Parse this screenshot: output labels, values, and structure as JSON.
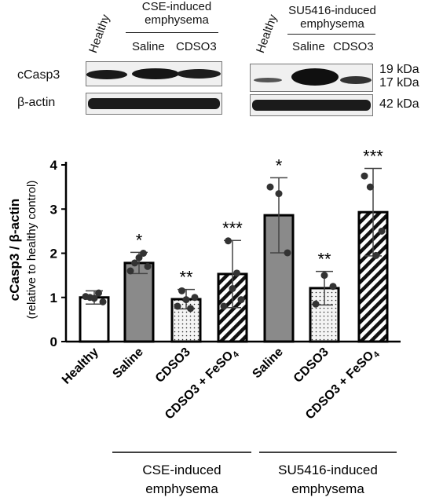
{
  "blots": {
    "left": {
      "lane_healthy": "Healthy",
      "group_title": "CSE-induced\nemphysema",
      "lane_saline": "Saline",
      "lane_cdso3": "CDSO3"
    },
    "right": {
      "lane_healthy": "Healthy",
      "group_title": "SU5416-induced\nemphysema",
      "lane_saline": "Saline",
      "lane_cdso3": "CDSO3"
    },
    "row_labels": {
      "top": "cCasp3",
      "bottom": "β-actin"
    },
    "size_labels": [
      "19 kDa",
      "17 kDa",
      "42 kDa"
    ]
  },
  "chart_data": {
    "type": "bar",
    "ylabel": "cCasp3 / β-actin",
    "ylabel_sub": "(relative to healthy control)",
    "ylim": [
      0,
      4
    ],
    "yticks": [
      0,
      1,
      2,
      3,
      4
    ],
    "categories": [
      "Healthy",
      "Saline",
      "CDSO3",
      "CDSO3 + FeSO4",
      "Saline",
      "CDSO3",
      "CDSO3 + FeSO4"
    ],
    "values": [
      1.0,
      1.78,
      0.96,
      1.53,
      2.86,
      1.21,
      2.93
    ],
    "error_upper": [
      1.15,
      2.02,
      1.18,
      2.29,
      3.71,
      1.59,
      3.92
    ],
    "error_lower": [
      0.85,
      1.54,
      0.74,
      0.77,
      2.01,
      0.83,
      1.94
    ],
    "fills": [
      "white",
      "gray",
      "dots",
      "stripes",
      "gray",
      "dots",
      "stripes"
    ],
    "significance": [
      "",
      "*",
      "**",
      "***",
      "*",
      "**",
      "***"
    ],
    "points": [
      [
        1.02,
        1.0,
        0.98,
        1.1,
        0.9
      ],
      [
        1.6,
        1.78,
        1.9,
        2.0,
        1.7
      ],
      [
        0.8,
        1.15,
        0.95,
        0.75,
        1.0
      ],
      [
        0.8,
        2.28,
        1.2,
        1.55,
        0.95
      ],
      [
        3.5,
        3.35,
        2.01
      ],
      [
        0.85,
        1.5,
        1.25
      ],
      [
        3.75,
        3.5,
        1.95,
        2.5
      ]
    ],
    "groups": [
      "CSE-induced\nemphysema",
      "SU5416-induced\nemphysema"
    ]
  }
}
